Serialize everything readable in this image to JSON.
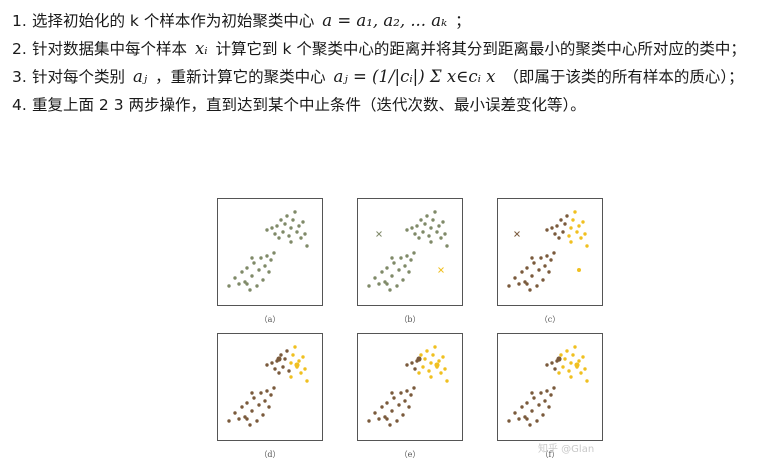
{
  "steps": [
    {
      "num": "1.",
      "text": "选择初始化的 k 个样本作为初始聚类中心",
      "math": "a = a₁, a₂, ... aₖ",
      "tail": "；"
    },
    {
      "num": "2.",
      "text": "针对数据集中每个样本",
      "math": "xᵢ",
      "tail": "计算它到 k 个聚类中心的距离并将其分到距离最小的聚类中心所对应的类中；"
    },
    {
      "num": "3.",
      "text": "针对每个类别",
      "math": "aⱼ",
      "mid": "，重新计算它的聚类中心",
      "math2": "aⱼ = (1/|cᵢ|) Σ x∈cᵢ x",
      "tail": "（即属于该类的所有样本的质心）；"
    },
    {
      "num": "4.",
      "text": "重复上面 2 3 两步操作，直到达到某个中止条件（迭代次数、最小误差变化等）。"
    }
  ],
  "panels": [
    {
      "caption": "（a）",
      "mode": "a"
    },
    {
      "caption": "（b）",
      "mode": "b"
    },
    {
      "caption": "（c）",
      "mode": "c"
    },
    {
      "caption": "（d）",
      "mode": "d"
    },
    {
      "caption": "（e）",
      "mode": "e"
    },
    {
      "caption": "（f）",
      "mode": "f"
    }
  ],
  "colors": {
    "green": "#7f8a68",
    "brown": "#7a5a3c",
    "yellow": "#f0c020",
    "border": "#555555"
  },
  "watermark": "知乎 @Glan"
}
